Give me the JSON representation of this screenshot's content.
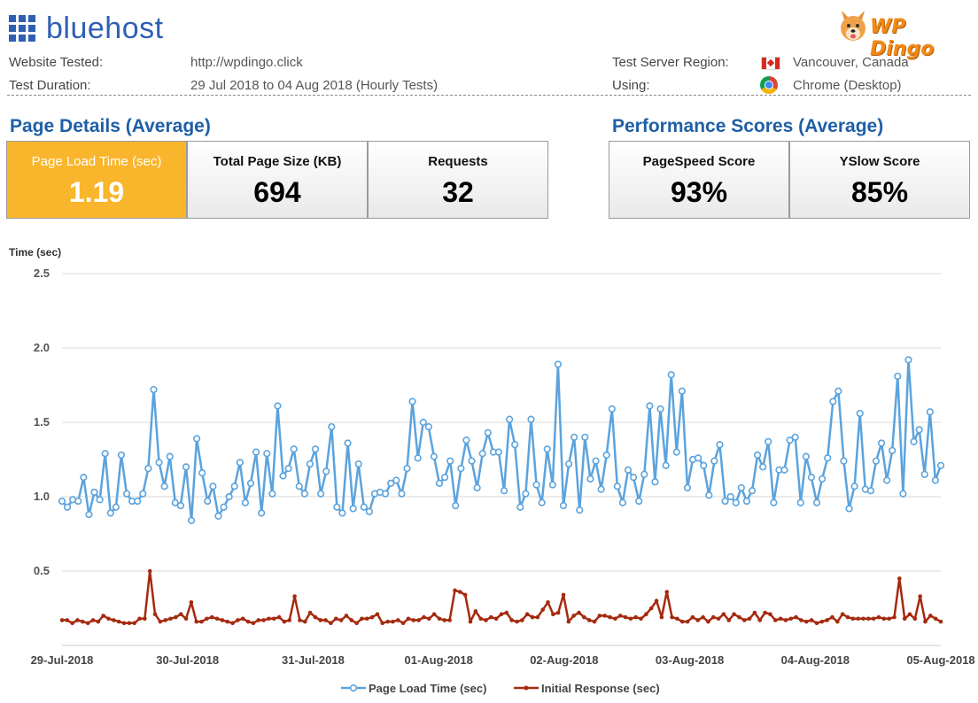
{
  "brand": {
    "name": "bluehost"
  },
  "logo": {
    "text": "WP Dingo"
  },
  "info": {
    "website_label": "Website Tested:",
    "website_value": "http://wpdingo.click",
    "duration_label": "Test Duration:",
    "duration_value": "29 Jul 2018 to 04 Aug 2018 (Hourly Tests)",
    "region_label": "Test Server Region:",
    "region_value": "Vancouver, Canada",
    "using_label": "Using:",
    "using_value": "Chrome (Desktop)"
  },
  "sections": {
    "page_details": "Page Details (Average)",
    "performance": "Performance Scores (Average)"
  },
  "cards": [
    {
      "label": "Page Load Time (sec)",
      "value": "1.19"
    },
    {
      "label": "Total Page Size (KB)",
      "value": "694"
    },
    {
      "label": "Requests",
      "value": "32"
    },
    {
      "label": "PageSpeed Score",
      "value": "93%"
    },
    {
      "label": "YSlow Score",
      "value": "85%"
    }
  ],
  "colors": {
    "accent_card": "#f9b52b",
    "series1": "#5ba3dd",
    "series2": "#a52a0f",
    "title": "#1f5fa6"
  },
  "chart_data": {
    "type": "line",
    "ylabel": "Time (sec)",
    "ylim": [
      0,
      2.5
    ],
    "yticks": [
      "0.5",
      "1.0",
      "1.5",
      "2.0",
      "2.5"
    ],
    "xlabels": [
      "29-Jul-2018",
      "30-Jul-2018",
      "31-Jul-2018",
      "01-Aug-2018",
      "02-Aug-2018",
      "03-Aug-2018",
      "04-Aug-2018",
      "05-Aug-2018"
    ],
    "xlim_hours": [
      0,
      168
    ],
    "grid": true,
    "legend_position": "bottom",
    "series": [
      {
        "name": "Page Load Time (sec)",
        "marker": "circle",
        "values": [
          0.97,
          0.93,
          0.98,
          0.97,
          1.13,
          0.88,
          1.03,
          0.98,
          1.29,
          0.89,
          0.93,
          1.28,
          1.02,
          0.97,
          0.97,
          1.02,
          1.19,
          1.72,
          1.23,
          1.07,
          1.27,
          0.96,
          0.94,
          1.2,
          0.84,
          1.39,
          1.16,
          0.97,
          1.07,
          0.87,
          0.93,
          1.0,
          1.07,
          1.23,
          0.96,
          1.09,
          1.3,
          0.89,
          1.29,
          1.02,
          1.61,
          1.14,
          1.19,
          1.32,
          1.07,
          1.02,
          1.22,
          1.32,
          1.02,
          1.17,
          1.47,
          0.93,
          0.89,
          1.36,
          0.92,
          1.22,
          0.93,
          0.9,
          1.02,
          1.03,
          1.02,
          1.09,
          1.11,
          1.02,
          1.19,
          1.64,
          1.26,
          1.5,
          1.47,
          1.27,
          1.09,
          1.13,
          1.24,
          0.94,
          1.19,
          1.38,
          1.24,
          1.06,
          1.29,
          1.43,
          1.3,
          1.3,
          1.04,
          1.52,
          1.35,
          0.93,
          1.02,
          1.52,
          1.08,
          0.96,
          1.32,
          1.08,
          1.89,
          0.94,
          1.22,
          1.4,
          0.91,
          1.4,
          1.12,
          1.24,
          1.05,
          1.28,
          1.59,
          1.07,
          0.96,
          1.18,
          1.13,
          0.97,
          1.15,
          1.61,
          1.1,
          1.59,
          1.21,
          1.82,
          1.3,
          1.71,
          1.06,
          1.25,
          1.26,
          1.21,
          1.01,
          1.24,
          1.35,
          0.97,
          1.0,
          0.96,
          1.06,
          0.97,
          1.04,
          1.28,
          1.2,
          1.37,
          0.96,
          1.18,
          1.18,
          1.38,
          1.4,
          0.96,
          1.27,
          1.13,
          0.96,
          1.12,
          1.26,
          1.64,
          1.71,
          1.24,
          0.92,
          1.07,
          1.56,
          1.05,
          1.04,
          1.24,
          1.36,
          1.11,
          1.31,
          1.81,
          1.02,
          1.92,
          1.37,
          1.45,
          1.15,
          1.57,
          1.11,
          1.21
        ]
      },
      {
        "name": "Initial Response (sec)",
        "marker": "dot",
        "values": [
          0.17,
          0.17,
          0.15,
          0.17,
          0.16,
          0.15,
          0.17,
          0.16,
          0.2,
          0.18,
          0.17,
          0.16,
          0.15,
          0.15,
          0.15,
          0.18,
          0.18,
          0.5,
          0.21,
          0.16,
          0.17,
          0.18,
          0.19,
          0.21,
          0.18,
          0.29,
          0.16,
          0.16,
          0.18,
          0.19,
          0.18,
          0.17,
          0.16,
          0.15,
          0.17,
          0.18,
          0.16,
          0.15,
          0.17,
          0.17,
          0.18,
          0.18,
          0.19,
          0.16,
          0.17,
          0.33,
          0.17,
          0.16,
          0.22,
          0.19,
          0.17,
          0.17,
          0.15,
          0.18,
          0.17,
          0.2,
          0.17,
          0.15,
          0.18,
          0.18,
          0.19,
          0.21,
          0.15,
          0.16,
          0.16,
          0.17,
          0.15,
          0.18,
          0.17,
          0.17,
          0.19,
          0.18,
          0.21,
          0.18,
          0.17,
          0.17,
          0.37,
          0.36,
          0.34,
          0.16,
          0.23,
          0.18,
          0.17,
          0.19,
          0.18,
          0.21,
          0.22,
          0.17,
          0.16,
          0.17,
          0.21,
          0.19,
          0.19,
          0.24,
          0.29,
          0.21,
          0.22,
          0.34,
          0.16,
          0.2,
          0.22,
          0.19,
          0.17,
          0.16,
          0.2,
          0.2,
          0.19,
          0.18,
          0.2,
          0.19,
          0.18,
          0.19,
          0.18,
          0.21,
          0.25,
          0.3,
          0.19,
          0.36,
          0.19,
          0.18,
          0.16,
          0.16,
          0.19,
          0.17,
          0.19,
          0.16,
          0.19,
          0.18,
          0.21,
          0.17,
          0.21,
          0.19,
          0.17,
          0.18,
          0.22,
          0.17,
          0.22,
          0.21,
          0.17,
          0.18,
          0.17,
          0.18,
          0.19,
          0.17,
          0.16,
          0.17,
          0.15,
          0.16,
          0.17,
          0.19,
          0.16,
          0.21,
          0.19,
          0.18,
          0.18,
          0.18,
          0.18,
          0.18,
          0.19,
          0.18,
          0.18,
          0.19,
          0.45,
          0.18,
          0.21,
          0.18,
          0.33,
          0.16,
          0.2,
          0.18,
          0.16
        ]
      }
    ]
  }
}
